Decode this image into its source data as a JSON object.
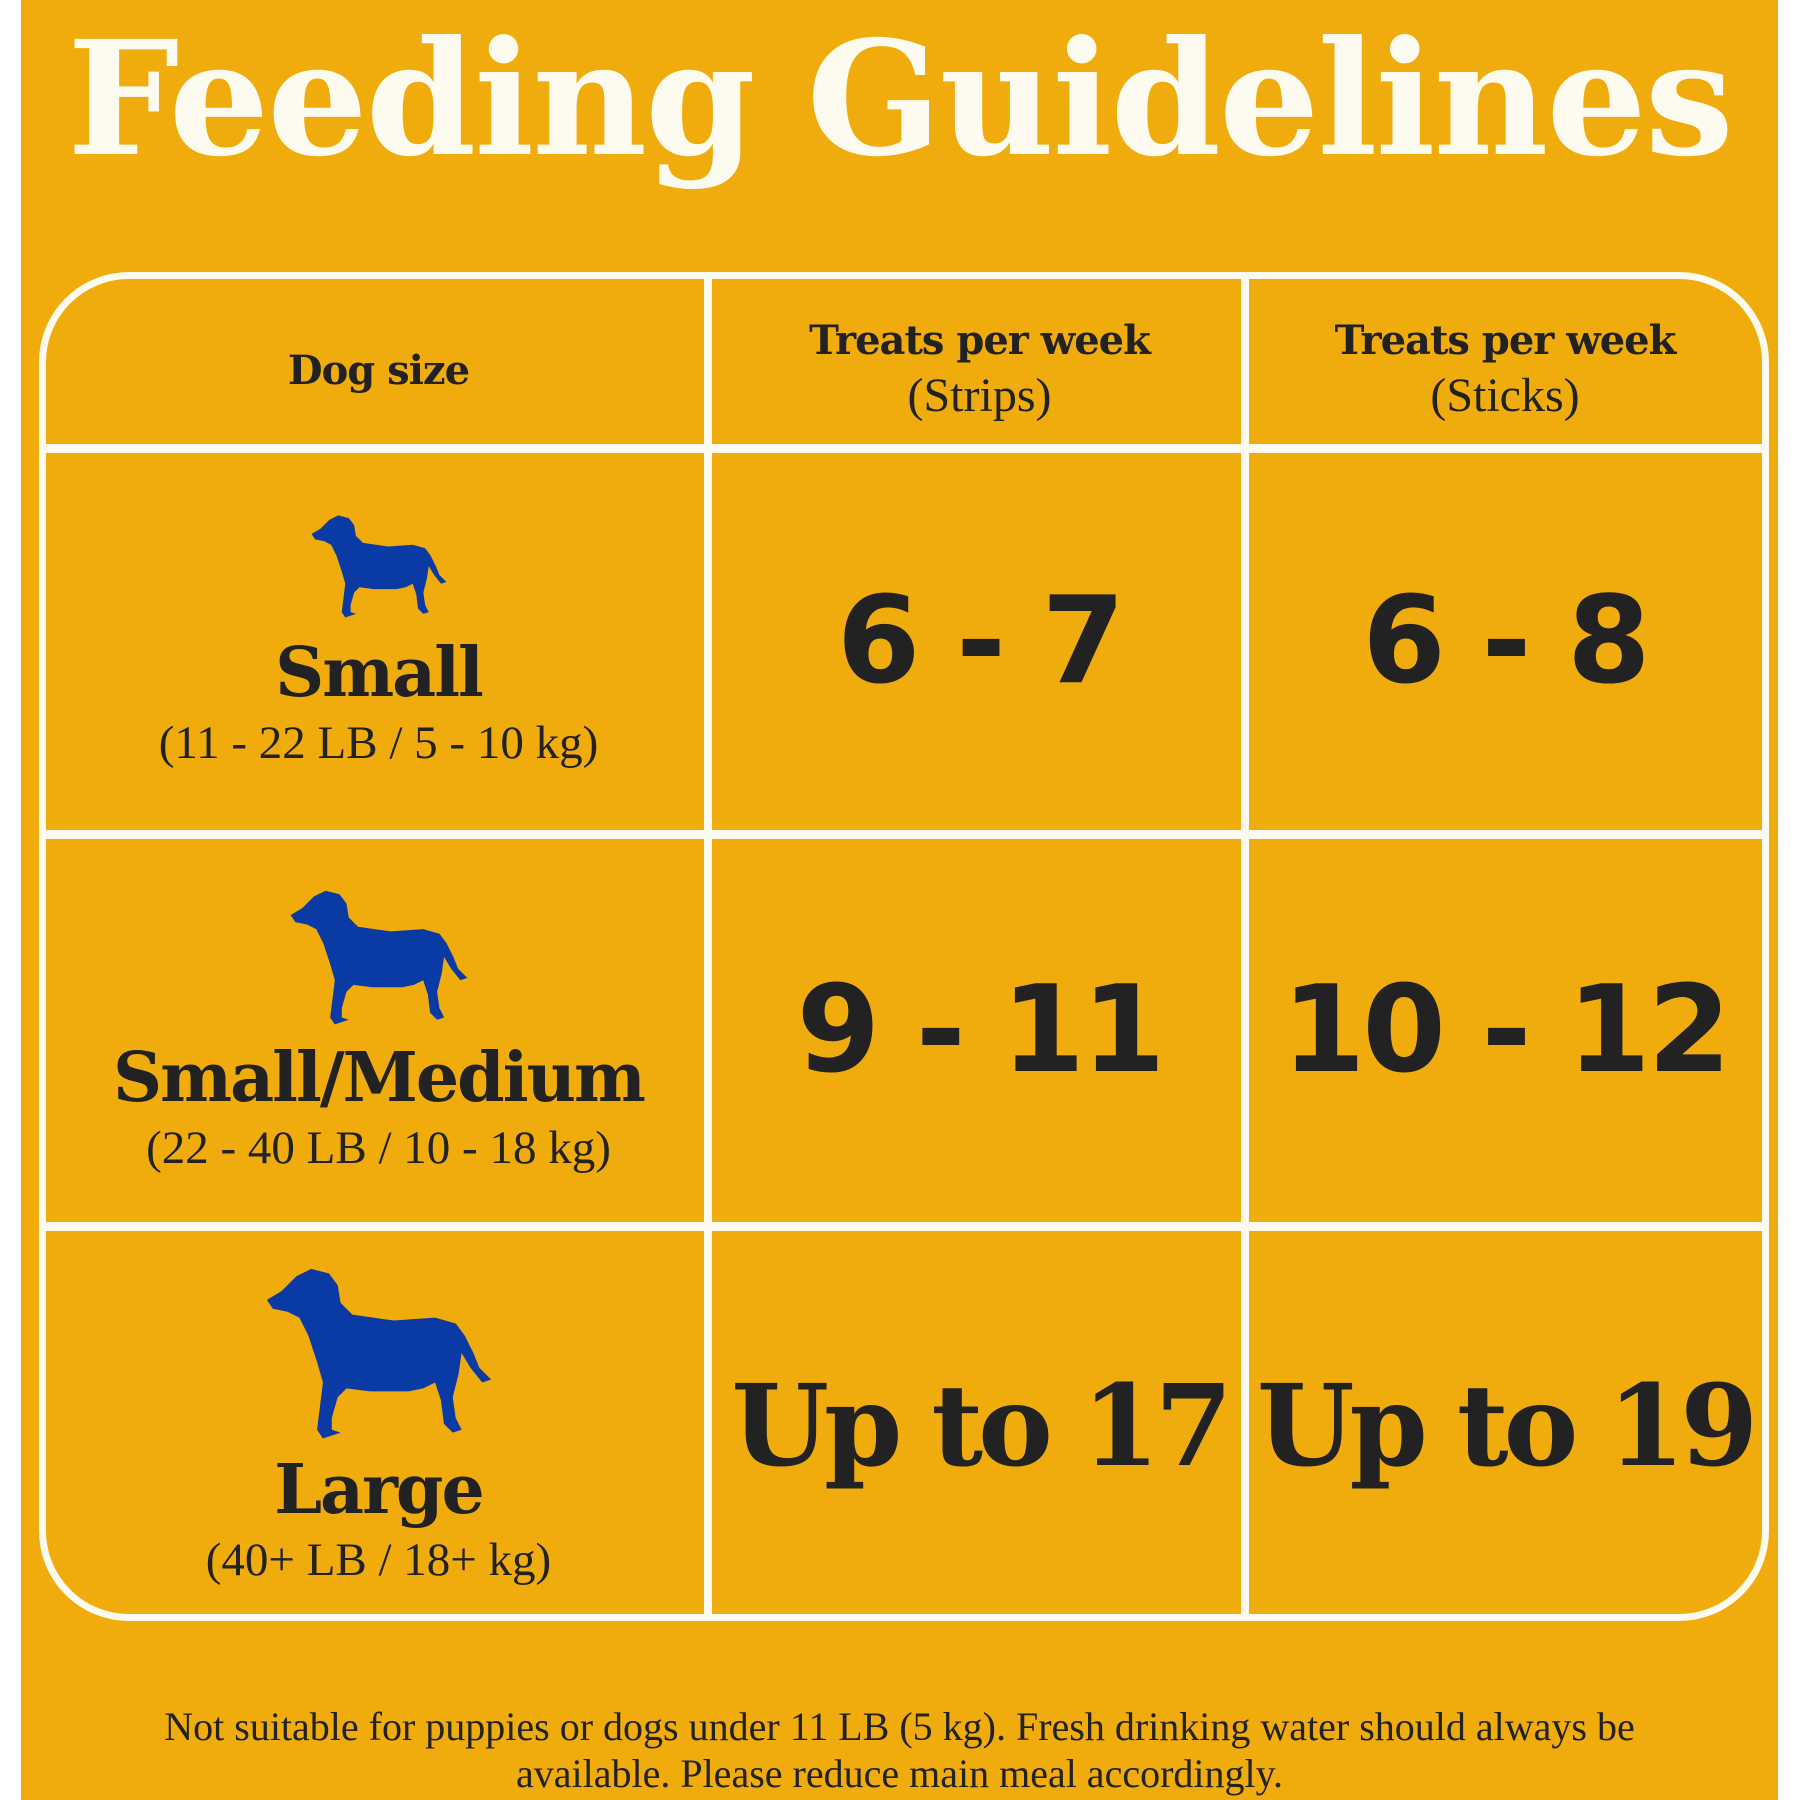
{
  "title": "Feeding Guidelines",
  "colors": {
    "background": "#f0ac0c",
    "lines": "#fdfbf0",
    "text": "#222222",
    "dog": "#0a3aa4"
  },
  "table": {
    "headers": {
      "size": "Dog size",
      "strips_title": "Treats per week",
      "strips_sub": "(Strips)",
      "sticks_title": "Treats per week",
      "sticks_sub": "(Sticks)"
    },
    "rows": [
      {
        "icon": "dog-silhouette-icon",
        "size": "Small",
        "range": "(11 - 22 LB / 5 - 10 kg)",
        "strips": "6 - 7",
        "sticks": "6 - 8"
      },
      {
        "icon": "dog-silhouette-icon",
        "size": "Small/Medium",
        "range": "(22 - 40 LB / 10 - 18 kg)",
        "strips": "9 - 11",
        "sticks": "10 - 12"
      },
      {
        "icon": "dog-silhouette-icon",
        "size": "Large",
        "range": "(40+  LB / 18+ kg)",
        "strips": "Up to 17",
        "sticks": "Up to 19"
      }
    ]
  },
  "footnote": {
    "line1": "Not suitable for puppies or dogs under 11 LB (5 kg). Fresh drinking water should always be",
    "line2": "available. Please reduce main meal accordingly."
  }
}
